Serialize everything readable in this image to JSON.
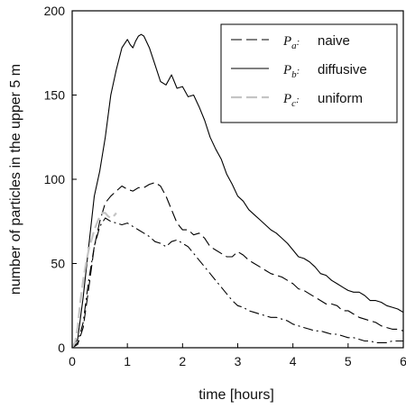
{
  "chart_data": {
    "type": "line",
    "title": "",
    "xlabel": "time [hours]",
    "ylabel": "number of particles in the upper 5 m",
    "xlim": [
      0,
      6
    ],
    "ylim": [
      0,
      200
    ],
    "xticks": [
      0,
      1,
      2,
      3,
      4,
      5,
      6
    ],
    "yticks": [
      0,
      50,
      100,
      150,
      200
    ],
    "grid": false,
    "legend_position": "top-right",
    "legend": [
      {
        "symbol": "P",
        "subscript": "a",
        "suffix": ":",
        "label": "naive",
        "series": "dashed"
      },
      {
        "symbol": "P",
        "subscript": "b",
        "suffix": ":",
        "label": "diffusive",
        "series": "solid"
      },
      {
        "symbol": "P",
        "subscript": "c",
        "suffix": ":",
        "label": "uniform",
        "series": "gray-dashed"
      }
    ],
    "series": [
      {
        "style": "solid",
        "color": "#000000",
        "x": [
          0,
          0.1,
          0.2,
          0.3,
          0.4,
          0.5,
          0.6,
          0.7,
          0.8,
          0.9,
          1.0,
          1.05,
          1.1,
          1.15,
          1.2,
          1.25,
          1.3,
          1.4,
          1.5,
          1.6,
          1.7,
          1.8,
          1.9,
          2.0,
          2.1,
          2.2,
          2.3,
          2.4,
          2.5,
          2.6,
          2.7,
          2.8,
          2.9,
          3.0,
          3.1,
          3.2,
          3.3,
          3.4,
          3.5,
          3.6,
          3.7,
          3.8,
          3.9,
          4.0,
          4.1,
          4.2,
          4.3,
          4.4,
          4.5,
          4.6,
          4.7,
          4.8,
          4.9,
          5.0,
          5.1,
          5.2,
          5.3,
          5.4,
          5.5,
          5.6,
          5.7,
          5.8,
          5.9,
          6.0
        ],
        "y": [
          0,
          5,
          30,
          60,
          90,
          105,
          125,
          150,
          165,
          178,
          183,
          180,
          178,
          182,
          185,
          186,
          185,
          178,
          168,
          158,
          156,
          162,
          154,
          155,
          149,
          150,
          143,
          135,
          125,
          118,
          112,
          103,
          97,
          90,
          87,
          82,
          79,
          76,
          73,
          70,
          68,
          65,
          62,
          58,
          54,
          53,
          51,
          48,
          44,
          43,
          40,
          38,
          36,
          34,
          33,
          33,
          31,
          28,
          28,
          27,
          25,
          24,
          23,
          21
        ]
      },
      {
        "style": "dashed",
        "color": "#000000",
        "x": [
          0,
          0.1,
          0.2,
          0.3,
          0.4,
          0.5,
          0.6,
          0.7,
          0.8,
          0.9,
          1.0,
          1.1,
          1.2,
          1.3,
          1.4,
          1.5,
          1.6,
          1.7,
          1.8,
          1.9,
          2.0,
          2.1,
          2.2,
          2.3,
          2.4,
          2.5,
          2.6,
          2.7,
          2.8,
          2.9,
          3.0,
          3.1,
          3.2,
          3.3,
          3.4,
          3.5,
          3.6,
          3.7,
          3.8,
          3.9,
          4.0,
          4.1,
          4.2,
          4.3,
          4.4,
          4.5,
          4.6,
          4.7,
          4.8,
          4.9,
          5.0,
          5.1,
          5.2,
          5.3,
          5.4,
          5.5,
          5.6,
          5.7,
          5.8,
          5.9,
          6.0
        ],
        "y": [
          0,
          2,
          12,
          35,
          60,
          75,
          86,
          90,
          93,
          96,
          94,
          93,
          95,
          95,
          97,
          98,
          96,
          90,
          82,
          74,
          70,
          70,
          67,
          68,
          65,
          60,
          58,
          56,
          54,
          54,
          57,
          55,
          52,
          50,
          48,
          46,
          44,
          43,
          42,
          40,
          38,
          35,
          34,
          32,
          30,
          28,
          26,
          26,
          25,
          22,
          22,
          20,
          18,
          17,
          16,
          15,
          13,
          12,
          11,
          11,
          10
        ]
      },
      {
        "style": "dashdot",
        "color": "#000000",
        "x": [
          0,
          0.1,
          0.2,
          0.3,
          0.4,
          0.5,
          0.6,
          0.7,
          0.8,
          0.9,
          1.0,
          1.1,
          1.2,
          1.3,
          1.4,
          1.5,
          1.6,
          1.7,
          1.8,
          1.9,
          2.0,
          2.1,
          2.2,
          2.3,
          2.4,
          2.5,
          2.6,
          2.7,
          2.8,
          2.9,
          3.0,
          3.1,
          3.2,
          3.3,
          3.4,
          3.5,
          3.6,
          3.7,
          3.8,
          3.9,
          4.0,
          4.1,
          4.2,
          4.3,
          4.4,
          4.5,
          4.6,
          4.7,
          4.8,
          4.9,
          5.0,
          5.1,
          5.2,
          5.3,
          5.4,
          5.5,
          5.6,
          5.7,
          5.8,
          5.9,
          6.0
        ],
        "y": [
          0,
          3,
          15,
          40,
          60,
          72,
          77,
          75,
          74,
          73,
          74,
          72,
          70,
          68,
          66,
          63,
          62,
          60,
          63,
          64,
          62,
          60,
          56,
          52,
          48,
          44,
          40,
          36,
          32,
          28,
          25,
          24,
          22,
          21,
          20,
          19,
          18,
          18,
          17,
          16,
          14,
          13,
          12,
          11,
          10,
          10,
          9,
          8,
          8,
          7,
          6,
          6,
          5,
          4,
          4,
          3,
          3,
          3,
          4,
          4,
          4
        ]
      },
      {
        "style": "gray-dashed",
        "color": "#c4c4c4",
        "x": [
          0,
          0.05,
          0.1,
          0.15,
          0.2,
          0.25,
          0.3,
          0.35,
          0.4,
          0.45,
          0.5,
          0.55,
          0.6,
          0.65,
          0.7,
          0.75,
          0.8
        ],
        "y": [
          0,
          3,
          12,
          28,
          40,
          50,
          58,
          64,
          70,
          74,
          78,
          80,
          80,
          78,
          77,
          78,
          80
        ]
      }
    ]
  }
}
